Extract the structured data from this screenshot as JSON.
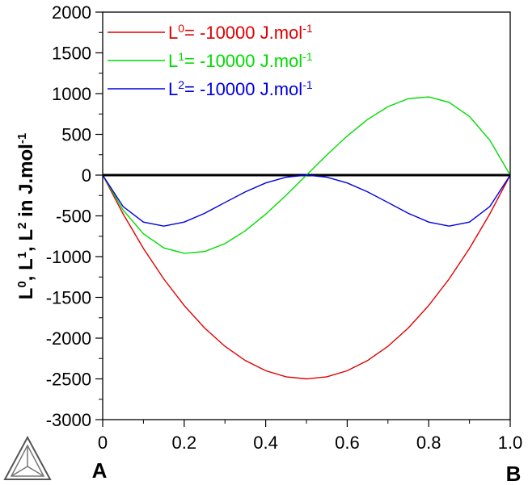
{
  "chart_data": {
    "type": "line",
    "title": "",
    "ylabel": {
      "parts": [
        {
          "text": "L",
          "sup": "0"
        },
        {
          "text": ", L",
          "sup": "1"
        },
        {
          "text": ", L",
          "sup": "2"
        },
        {
          "text": " in J.mol",
          "sup": "-1"
        }
      ]
    },
    "xlim": [
      0,
      1.0
    ],
    "ylim": [
      -3000,
      2000
    ],
    "x_ticks": [
      0,
      0.2,
      0.4,
      0.6,
      0.8,
      1.0
    ],
    "x_tick_labels": [
      "0",
      "0.2",
      "0.4",
      "0.6",
      "0.8",
      "1.0"
    ],
    "y_ticks": [
      2000,
      1500,
      1000,
      500,
      0,
      -500,
      -1000,
      -1500,
      -2000,
      -2500,
      -3000
    ],
    "y_tick_labels": [
      "2000",
      "1500",
      "1000",
      "500",
      "0",
      "-500",
      "-1000",
      "-1500",
      "-2000",
      "-2500",
      "-3000"
    ],
    "x_end_labels": {
      "left": "A",
      "right": "B"
    },
    "legend_position": "top-left",
    "grid": false,
    "series": [
      {
        "name": "L0",
        "legend": {
          "base": "L",
          "sup": "0",
          "rest": "= -10000 J.mol",
          "sup2": "-1"
        },
        "color": "#e00000",
        "x": [
          0,
          0.05,
          0.1,
          0.15,
          0.2,
          0.25,
          0.3,
          0.35,
          0.4,
          0.45,
          0.5,
          0.55,
          0.6,
          0.65,
          0.7,
          0.75,
          0.8,
          0.85,
          0.9,
          0.95,
          1.0
        ],
        "y": [
          0,
          -475,
          -900,
          -1275,
          -1600,
          -1875,
          -2100,
          -2275,
          -2400,
          -2475,
          -2500,
          -2475,
          -2400,
          -2275,
          -2100,
          -1875,
          -1600,
          -1275,
          -900,
          -475,
          0
        ]
      },
      {
        "name": "L1",
        "legend": {
          "base": "L",
          "sup": "1",
          "rest": "= -10000 J.mol",
          "sup2": "-1"
        },
        "color": "#00dd00",
        "x": [
          0,
          0.05,
          0.1,
          0.15,
          0.2,
          0.25,
          0.3,
          0.35,
          0.4,
          0.45,
          0.5,
          0.55,
          0.6,
          0.65,
          0.7,
          0.75,
          0.8,
          0.85,
          0.9,
          0.95,
          1.0
        ],
        "y": [
          0,
          -428,
          -720,
          -893,
          -960,
          -938,
          -840,
          -683,
          -480,
          -248,
          0,
          248,
          480,
          683,
          840,
          938,
          960,
          893,
          720,
          428,
          0
        ]
      },
      {
        "name": "L2",
        "legend": {
          "base": "L",
          "sup": "2",
          "rest": "= -10000 J.mol",
          "sup2": "-1"
        },
        "color": "#0000e0",
        "x": [
          0,
          0.05,
          0.1,
          0.15,
          0.2,
          0.25,
          0.3,
          0.35,
          0.4,
          0.45,
          0.5,
          0.55,
          0.6,
          0.65,
          0.7,
          0.75,
          0.8,
          0.85,
          0.9,
          0.95,
          1.0
        ],
        "y": [
          0,
          -385,
          -576,
          -625,
          -576,
          -469,
          -336,
          -205,
          -96,
          -25,
          0,
          -25,
          -96,
          -205,
          -336,
          -469,
          -576,
          -625,
          -576,
          -385,
          0
        ]
      }
    ]
  }
}
